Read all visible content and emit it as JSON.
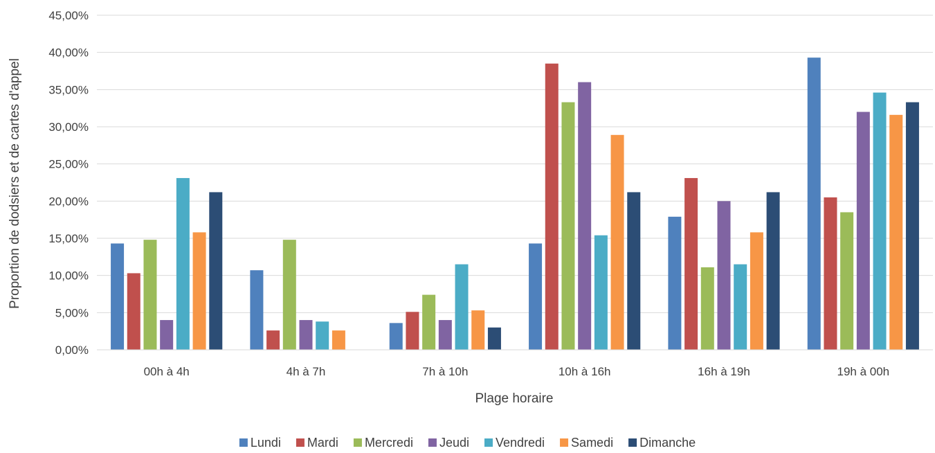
{
  "chart_data": {
    "type": "bar",
    "title": "",
    "xlabel": "Plage horaire",
    "ylabel": "Proportion de dodsiers et de cartes d'appel",
    "ylim": [
      0,
      45
    ],
    "ytick_values": [
      0,
      5,
      10,
      15,
      20,
      25,
      30,
      35,
      40,
      45
    ],
    "ytick_labels": [
      "0,00%",
      "5,00%",
      "10,00%",
      "15,00%",
      "20,00%",
      "25,00%",
      "30,00%",
      "35,00%",
      "40,00%",
      "45,00%"
    ],
    "grid": true,
    "legend_position": "bottom",
    "categories": [
      "00h à 4h",
      "4h à 7h",
      "7h à 10h",
      "10h à 16h",
      "16h à 19h",
      "19h à 00h"
    ],
    "series": [
      {
        "name": "Lundi",
        "color": "#4f81bd",
        "values": [
          14.3,
          10.7,
          3.6,
          14.3,
          17.9,
          39.3
        ]
      },
      {
        "name": "Mardi",
        "color": "#c0504d",
        "values": [
          10.3,
          2.6,
          5.1,
          38.5,
          23.1,
          20.5
        ]
      },
      {
        "name": "Mercredi",
        "color": "#9bbb59",
        "values": [
          14.8,
          14.8,
          7.4,
          33.3,
          11.1,
          18.5
        ]
      },
      {
        "name": "Jeudi",
        "color": "#8064a2",
        "values": [
          4.0,
          4.0,
          4.0,
          36.0,
          20.0,
          32.0
        ]
      },
      {
        "name": "Vendredi",
        "color": "#4bacc6",
        "values": [
          23.1,
          3.8,
          11.5,
          15.4,
          11.5,
          34.6
        ]
      },
      {
        "name": "Samedi",
        "color": "#f79646",
        "values": [
          15.8,
          2.6,
          5.3,
          28.9,
          15.8,
          31.6
        ]
      },
      {
        "name": "Dimanche",
        "color": "#2c4d75",
        "values": [
          21.2,
          0,
          3.0,
          21.2,
          21.2,
          33.3
        ]
      }
    ]
  }
}
